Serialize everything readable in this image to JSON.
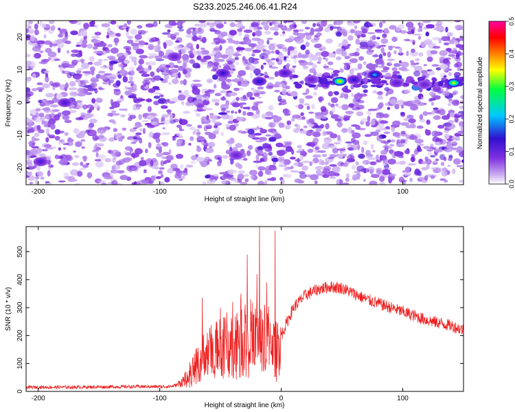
{
  "page_title": "S233.2025.246.06.41.R24",
  "chart_data": [
    {
      "type": "heatmap",
      "xlabel": "Height of straight line (km)",
      "ylabel": "Frequency (Hz)",
      "xlim": [
        -210,
        150
      ],
      "ylim": [
        -25,
        25
      ],
      "xticks": [
        -200,
        -100,
        0,
        100
      ],
      "yticks": [
        -20,
        -10,
        0,
        10,
        20
      ],
      "colorbar": {
        "label": "Normalized spectral amplitude",
        "range": [
          0.0,
          0.5
        ],
        "ticks": [
          "0.0",
          "0.1",
          "0.2",
          "0.3",
          "0.4",
          "0.5"
        ],
        "colormap": [
          "#ffffff",
          "#c8a8f0",
          "#8030e0",
          "#3010d0",
          "#00c8ff",
          "#00ff40",
          "#ffff00",
          "#ff8000",
          "#ff0000",
          "#ff00a0"
        ]
      },
      "features": [
        {
          "note": "dominant ridge near 5-7 Hz",
          "x": [
            10,
            150
          ],
          "y": [
            5,
            7
          ]
        }
      ],
      "hotspots": [
        {
          "x": 48,
          "y": 6.5,
          "value": 0.38
        },
        {
          "x": 142,
          "y": 6,
          "value": 0.35
        },
        {
          "x": 77,
          "y": 8.5,
          "value": 0.2
        },
        {
          "x": -48,
          "y": 9,
          "value": 0.14
        },
        {
          "x": -18,
          "y": 6.5,
          "value": 0.15
        },
        {
          "x": 60,
          "y": 7,
          "value": 0.14
        },
        {
          "x": -178,
          "y": 0,
          "value": 0.12
        },
        {
          "x": -198,
          "y": -18,
          "value": 0.12
        },
        {
          "x": -88,
          "y": 14,
          "value": 0.1
        },
        {
          "x": 3,
          "y": 9,
          "value": 0.12
        },
        {
          "x": 95,
          "y": 6,
          "value": 0.11
        },
        {
          "x": 118,
          "y": 5.5,
          "value": 0.1
        },
        {
          "x": -37,
          "y": -16,
          "value": 0.1
        },
        {
          "x": 25,
          "y": 7,
          "value": 0.1
        }
      ]
    },
    {
      "type": "line",
      "xlabel": "Height of straight line (km)",
      "ylabel": "SNR (10 * v/v)",
      "xlim": [
        -210,
        150
      ],
      "ylim": [
        0,
        590
      ],
      "xticks": [
        -200,
        -100,
        0,
        100
      ],
      "yticks": [
        0,
        100,
        200,
        300,
        400,
        500
      ],
      "series": [
        {
          "color": "#ee2222",
          "x": [
            -210,
            -180,
            -150,
            -120,
            -100,
            -90,
            -85,
            -80,
            -75,
            -70,
            -65,
            -60,
            -55,
            -50,
            -45,
            -40,
            -35,
            -30,
            -25,
            -20,
            -15,
            -10,
            -5,
            0,
            5,
            10,
            20,
            30,
            40,
            50,
            60,
            70,
            80,
            90,
            100,
            110,
            120,
            130,
            140,
            150
          ],
          "y": [
            15,
            15,
            16,
            17,
            17,
            18,
            25,
            40,
            70,
            100,
            130,
            150,
            160,
            170,
            185,
            200,
            210,
            220,
            215,
            200,
            205,
            200,
            160,
            200,
            250,
            300,
            345,
            365,
            375,
            370,
            350,
            330,
            315,
            300,
            285,
            270,
            255,
            245,
            235,
            220
          ],
          "spikes": [
            {
              "x": -18,
              "y": 590
            },
            {
              "x": -5,
              "y": 575
            },
            {
              "x": -28,
              "y": 490
            },
            {
              "x": -33,
              "y": 350
            },
            {
              "x": -65,
              "y": 335
            },
            {
              "x": -20,
              "y": 420
            },
            {
              "x": -12,
              "y": 390
            },
            {
              "x": -50,
              "y": 300
            },
            {
              "x": -40,
              "y": 320
            }
          ]
        }
      ]
    }
  ]
}
